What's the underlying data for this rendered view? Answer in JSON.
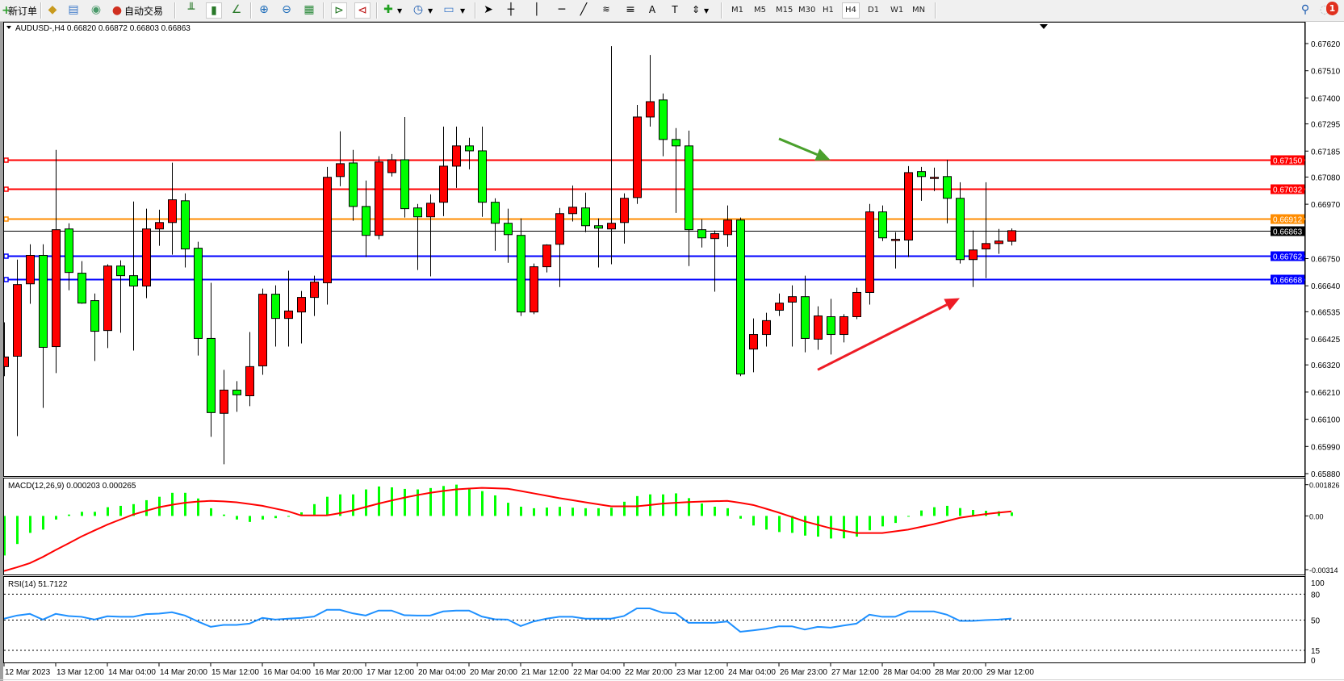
{
  "toolbar": {
    "new_order": "新订单",
    "auto_trading": "自动交易",
    "icons": [
      "new-order-icon",
      "navigator-icon",
      "market-watch-icon",
      "signals-icon",
      "auto-trading-icon",
      "bar-chart-icon",
      "candlestick-icon",
      "line-chart-icon",
      "zoom-in-icon",
      "zoom-out-icon",
      "tile-windows-icon",
      "auto-scroll-icon",
      "chart-shift-icon",
      "new-chart-icon",
      "periods-icon",
      "templates-icon",
      "cursor-icon",
      "crosshair-icon",
      "vertical-line-icon",
      "horizontal-line-icon",
      "trendline-icon",
      "fibonacci-fan-icon",
      "fibonacci-icon",
      "text-icon",
      "text-label-icon",
      "arrows-icon",
      "search-icon",
      "notifications-icon"
    ],
    "timeframes": [
      "M1",
      "M5",
      "M15",
      "M30",
      "H1",
      "H4",
      "D1",
      "W1",
      "MN"
    ],
    "active_timeframe": "H4",
    "notification_count": "1"
  },
  "chart": {
    "header": "AUDUSD-,H4  0.66820 0.66872 0.66803 0.66863",
    "symbol": "AUDUSD-",
    "timeframe": "H4",
    "colors": {
      "bull": "#ff0000",
      "bear": "#00ff00",
      "background": "#ffffff"
    }
  },
  "chart_data": [
    {
      "type": "candlestick",
      "title": "AUDUSD-,H4",
      "ylim": [
        0.6588,
        0.6762
      ],
      "y_ticks": [
        "0.67620",
        "0.67510",
        "0.67400",
        "0.67295",
        "0.67185",
        "0.67080",
        "0.66970",
        "0.66750",
        "0.66640",
        "0.66535",
        "0.66425",
        "0.66320",
        "0.66210",
        "0.66100",
        "0.65990",
        "0.65880"
      ],
      "x_ticks": [
        "12 Mar 2023",
        "13 Mar 12:00",
        "14 Mar 04:00",
        "14 Mar 20:00",
        "15 Mar 12:00",
        "16 Mar 04:00",
        "16 Mar 20:00",
        "17 Mar 12:00",
        "20 Mar 04:00",
        "20 Mar 20:00",
        "21 Mar 12:00",
        "22 Mar 04:00",
        "22 Mar 20:00",
        "23 Mar 12:00",
        "24 Mar 04:00",
        "26 Mar 23:00",
        "27 Mar 12:00",
        "28 Mar 04:00",
        "28 Mar 20:00",
        "29 Mar 12:00"
      ],
      "x_tick_every": 4,
      "ohlc": [
        [
          0.66313,
          0.66492,
          0.66274,
          0.66352
        ],
        [
          0.66355,
          0.66746,
          0.66032,
          0.66645
        ],
        [
          0.66648,
          0.66808,
          0.66567,
          0.66763
        ],
        [
          0.66763,
          0.66808,
          0.66146,
          0.66391
        ],
        [
          0.66394,
          0.6719,
          0.66287,
          0.66867
        ],
        [
          0.6687,
          0.66893,
          0.66622,
          0.66694
        ],
        [
          0.66691,
          0.6674,
          0.66567,
          0.6657
        ],
        [
          0.6658,
          0.66609,
          0.66336,
          0.66456
        ],
        [
          0.66459,
          0.66727,
          0.66388,
          0.6672
        ],
        [
          0.6672,
          0.66743,
          0.6645,
          0.66681
        ],
        [
          0.66681,
          0.66981,
          0.66378,
          0.66639
        ],
        [
          0.66639,
          0.66952,
          0.6659,
          0.6687
        ],
        [
          0.6687,
          0.66948,
          0.66802,
          0.66896
        ],
        [
          0.66896,
          0.67138,
          0.66766,
          0.66988
        ],
        [
          0.66984,
          0.67014,
          0.66714,
          0.66789
        ],
        [
          0.66792,
          0.66818,
          0.66358,
          0.66427
        ],
        [
          0.66427,
          0.66652,
          0.66029,
          0.66127
        ],
        [
          0.66124,
          0.663,
          0.65918,
          0.66218
        ],
        [
          0.66218,
          0.66254,
          0.6613,
          0.66199
        ],
        [
          0.66195,
          0.66453,
          0.66153,
          0.66313
        ],
        [
          0.66316,
          0.66629,
          0.6628,
          0.66606
        ],
        [
          0.66606,
          0.66642,
          0.66394,
          0.66508
        ],
        [
          0.66508,
          0.66701,
          0.66394,
          0.66538
        ],
        [
          0.66534,
          0.66619,
          0.66407,
          0.66593
        ],
        [
          0.66593,
          0.66681,
          0.66518,
          0.66655
        ],
        [
          0.66652,
          0.67121,
          0.66564,
          0.67079
        ],
        [
          0.67082,
          0.67265,
          0.67043,
          0.67134
        ],
        [
          0.67137,
          0.6719,
          0.66903,
          0.66961
        ],
        [
          0.66961,
          0.67066,
          0.66756,
          0.66844
        ],
        [
          0.66844,
          0.67164,
          0.66828,
          0.67141
        ],
        [
          0.67098,
          0.67173,
          0.67082,
          0.6715
        ],
        [
          0.6715,
          0.67323,
          0.66916,
          0.66952
        ],
        [
          0.66955,
          0.66971,
          0.66704,
          0.66919
        ],
        [
          0.66919,
          0.6701,
          0.66678,
          0.66974
        ],
        [
          0.66978,
          0.67284,
          0.66922,
          0.67124
        ],
        [
          0.67124,
          0.67284,
          0.67036,
          0.67206
        ],
        [
          0.67206,
          0.67239,
          0.67111,
          0.67186
        ],
        [
          0.67186,
          0.67284,
          0.66919,
          0.66978
        ],
        [
          0.66978,
          0.66994,
          0.66782,
          0.66893
        ],
        [
          0.66893,
          0.66952,
          0.66733,
          0.66847
        ],
        [
          0.66844,
          0.66913,
          0.66518,
          0.66534
        ],
        [
          0.66534,
          0.6673,
          0.66525,
          0.66717
        ],
        [
          0.66717,
          0.66808,
          0.66694,
          0.66805
        ],
        [
          0.66808,
          0.66955,
          0.66635,
          0.66932
        ],
        [
          0.66932,
          0.67046,
          0.669,
          0.66958
        ],
        [
          0.66955,
          0.67017,
          0.66857,
          0.66883
        ],
        [
          0.66883,
          0.66913,
          0.66714,
          0.66873
        ],
        [
          0.6687,
          0.6761,
          0.66727,
          0.66893
        ],
        [
          0.66896,
          0.67014,
          0.66811,
          0.66994
        ],
        [
          0.66997,
          0.67372,
          0.66971,
          0.67323
        ],
        [
          0.67323,
          0.67574,
          0.67284,
          0.67385
        ],
        [
          0.67392,
          0.67418,
          0.67164,
          0.67232
        ],
        [
          0.67232,
          0.67278,
          0.66935,
          0.67206
        ],
        [
          0.67206,
          0.67268,
          0.6672,
          0.66867
        ],
        [
          0.66867,
          0.66909,
          0.66795,
          0.66834
        ],
        [
          0.66831,
          0.66864,
          0.66616,
          0.66851
        ],
        [
          0.66847,
          0.66965,
          0.66798,
          0.66906
        ],
        [
          0.66906,
          0.66916,
          0.66274,
          0.66283
        ],
        [
          0.66384,
          0.66508,
          0.6629,
          0.66443
        ],
        [
          0.66443,
          0.66531,
          0.66394,
          0.66499
        ],
        [
          0.66541,
          0.66609,
          0.66518,
          0.6657
        ],
        [
          0.66574,
          0.66642,
          0.66394,
          0.66596
        ],
        [
          0.66596,
          0.66681,
          0.66371,
          0.66427
        ],
        [
          0.66424,
          0.66557,
          0.66381,
          0.66518
        ],
        [
          0.66515,
          0.66587,
          0.66362,
          0.66443
        ],
        [
          0.66443,
          0.66525,
          0.66411,
          0.66515
        ],
        [
          0.66515,
          0.66632,
          0.66505,
          0.66613
        ],
        [
          0.66613,
          0.66971,
          0.66564,
          0.66939
        ],
        [
          0.66939,
          0.66965,
          0.66821,
          0.66834
        ],
        [
          0.66828,
          0.66857,
          0.6671,
          0.66828
        ],
        [
          0.66825,
          0.67124,
          0.66756,
          0.67098
        ],
        [
          0.67102,
          0.67121,
          0.66984,
          0.67082
        ],
        [
          0.67079,
          0.67118,
          0.67023,
          0.67079
        ],
        [
          0.67082,
          0.6715,
          0.66893,
          0.66994
        ],
        [
          0.66994,
          0.67059,
          0.6673,
          0.66746
        ],
        [
          0.66746,
          0.66864,
          0.66635,
          0.66785
        ],
        [
          0.66789,
          0.67059,
          0.66671,
          0.66811
        ],
        [
          0.66811,
          0.6687,
          0.66769,
          0.66821
        ],
        [
          0.6682,
          0.66872,
          0.66803,
          0.66863
        ]
      ],
      "levels": [
        {
          "price": 0.6715,
          "label": "0.67150",
          "color": "#ff0000"
        },
        {
          "price": 0.67032,
          "label": "0.67032",
          "color": "#ff0000"
        },
        {
          "price": 0.66912,
          "label": "0.66912",
          "color": "#ff8c00"
        },
        {
          "price": 0.66762,
          "label": "0.66762",
          "color": "#0000ff"
        },
        {
          "price": 0.66668,
          "label": "0.66668",
          "color": "#0000ff"
        }
      ],
      "current_price": {
        "price": 0.66863,
        "label": "0.66863"
      },
      "annotations": [
        {
          "type": "arrow",
          "color": "#4aa02c",
          "from": [
            61,
            0.67235
          ],
          "to": [
            65,
            0.67148
          ]
        },
        {
          "type": "arrow",
          "color": "#ee1c25",
          "from": [
            64,
            0.663
          ],
          "to": [
            75,
            0.6659
          ]
        }
      ]
    },
    {
      "type": "macd",
      "label": "MACD(12,26,9) 0.000203 0.000265",
      "ylim": [
        -0.00314,
        0.001826
      ],
      "y_ticks": [
        "0.001826",
        "0.00",
        "-0.00314"
      ],
      "histogram": [
        -0.00231,
        -0.00164,
        -0.00099,
        -0.0008,
        -0.00021,
        8e-05,
        0.00024,
        0.00024,
        0.00051,
        0.00059,
        0.00069,
        0.00092,
        0.00112,
        0.00135,
        0.00135,
        0.00102,
        0.00045,
        8e-05,
        -0.00021,
        -0.00035,
        -0.00021,
        -0.00013,
        -5e-05,
        0.00021,
        0.00069,
        0.00112,
        0.00126,
        0.00126,
        0.00155,
        0.00172,
        0.00167,
        0.00158,
        0.00155,
        0.00163,
        0.00175,
        0.00183,
        0.00164,
        0.00145,
        0.0012,
        0.00077,
        0.00054,
        0.00045,
        0.00049,
        0.00053,
        0.00048,
        0.00045,
        0.00045,
        0.00048,
        0.00083,
        0.00116,
        0.00126,
        0.00126,
        0.00132,
        0.00104,
        0.00073,
        0.00054,
        0.00045,
        -0.00016,
        -0.00056,
        -0.0008,
        -0.00094,
        -0.00099,
        -0.00115,
        -0.00121,
        -0.00132,
        -0.00131,
        -0.00121,
        -0.00084,
        -0.00061,
        -0.00041,
        -3e-05,
        0.00032,
        0.00051,
        0.00059,
        0.00046,
        0.00035,
        0.0003,
        0.00027,
        0.000203
      ],
      "signal": [
        -0.00322,
        -0.003,
        -0.00276,
        -0.0024,
        -0.00199,
        -0.0016,
        -0.0012,
        -0.00085,
        -0.00051,
        -0.00021,
        8e-05,
        0.0003,
        0.00051,
        0.00065,
        0.00077,
        0.00084,
        0.00088,
        0.00085,
        0.0008,
        0.0007,
        0.00059,
        0.00043,
        0.00027,
        3e-05,
        3e-05,
        3e-05,
        0.00016,
        0.00032,
        0.00052,
        0.00072,
        0.0009,
        0.00107,
        0.00122,
        0.00135,
        0.00146,
        0.00155,
        0.0016,
        0.00164,
        0.00162,
        0.00159,
        0.00146,
        0.00132,
        0.00118,
        0.00104,
        0.00092,
        0.0008,
        0.00068,
        0.00056,
        0.00056,
        0.00056,
        0.00064,
        0.00072,
        0.00077,
        0.00081,
        0.00084,
        0.00086,
        0.00088,
        0.00077,
        0.00064,
        0.00042,
        0.00019,
        -6e-05,
        -0.00032,
        -0.00052,
        -0.00072,
        -0.00086,
        -0.001,
        -0.001,
        -0.001,
        -0.0009,
        -0.0008,
        -0.00064,
        -0.00048,
        -0.0003,
        -0.00011,
        0.0,
        0.00011,
        0.00019,
        0.000265
      ],
      "colors": {
        "histogram": "#00ff00",
        "signal": "#ff0000"
      }
    },
    {
      "type": "line",
      "label": "RSI(14) 51.7122",
      "ylim": [
        0,
        100
      ],
      "y_ticks": [
        "100",
        "80",
        "50",
        "15",
        "0"
      ],
      "levels": [
        80,
        50,
        15
      ],
      "values": [
        51.6,
        55.3,
        57.2,
        50.6,
        57.2,
        54.7,
        53.8,
        50.6,
        54.4,
        53.8,
        53.8,
        56.9,
        57.5,
        59.1,
        55.3,
        48.4,
        42.2,
        44.4,
        44.4,
        45.9,
        52.5,
        50.6,
        51.6,
        52.5,
        54.1,
        61.9,
        61.9,
        57.8,
        55.3,
        61.0,
        61.0,
        55.6,
        55.3,
        55.3,
        60.0,
        61.0,
        61.0,
        54.1,
        50.9,
        50.6,
        43.1,
        48.4,
        51.6,
        53.8,
        53.8,
        51.6,
        51.6,
        51.6,
        54.7,
        63.5,
        63.5,
        58.5,
        57.8,
        46.9,
        46.9,
        46.9,
        48.4,
        36.5,
        38.1,
        40.0,
        42.8,
        42.8,
        39.0,
        42.2,
        41.2,
        43.7,
        45.9,
        56.3,
        53.8,
        53.8,
        60.0,
        60.0,
        60.0,
        56.3,
        49.1,
        49.1,
        50.0,
        50.6,
        51.7122
      ],
      "color": "#1e90ff"
    }
  ]
}
